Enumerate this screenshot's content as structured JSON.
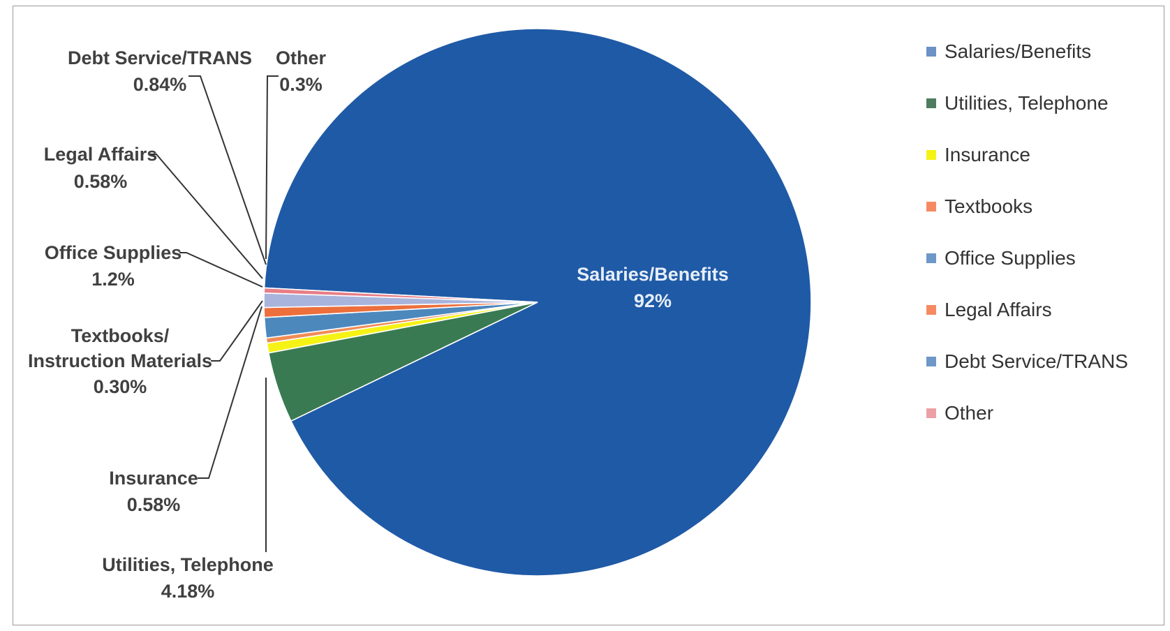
{
  "chart_data": {
    "type": "pie",
    "title": "",
    "slices": [
      {
        "label": "Salaries/Benefits",
        "value": 92,
        "display": "92%",
        "color": "#1f5aa6",
        "label_lines": [
          "Salaries/Benefits",
          "92%"
        ]
      },
      {
        "label": "Utilities, Telephone",
        "value": 4.18,
        "display": "4.18%",
        "color": "#3a7a52",
        "label_lines": [
          "Utilities, Telephone",
          "4.18%"
        ]
      },
      {
        "label": "Insurance",
        "value": 0.58,
        "display": "0.58%",
        "color": "#f5f215",
        "label_lines": [
          "Insurance",
          "0.58%"
        ]
      },
      {
        "label": "Textbooks",
        "value": 0.3,
        "display": "0.30%",
        "color": "#f08c55",
        "label_lines": [
          "Textbooks/",
          "Instruction Materials",
          "0.30%"
        ]
      },
      {
        "label": "Office Supplies",
        "value": 1.2,
        "display": "1.2%",
        "color": "#4d88bd",
        "label_lines": [
          "Office Supplies",
          "1.2%"
        ]
      },
      {
        "label": "Legal Affairs",
        "value": 0.58,
        "display": "0.58%",
        "color": "#ec6f3c",
        "label_lines": [
          "Legal Affairs",
          "0.58%"
        ]
      },
      {
        "label": "Debt Service/TRANS",
        "value": 0.84,
        "display": "0.84%",
        "color": "#a9b4dc",
        "label_lines": [
          "Debt Service/TRANS",
          "0.84%"
        ]
      },
      {
        "label": "Other",
        "value": 0.3,
        "display": "0.3%",
        "color": "#e87e87",
        "label_lines": [
          "Other",
          "0.3%"
        ]
      }
    ],
    "legend": {
      "position": "right",
      "items": [
        {
          "label": "Salaries/Benefits",
          "color": "#6a92c4"
        },
        {
          "label": "Utilities, Telephone",
          "color": "#4e7c5f"
        },
        {
          "label": "Insurance",
          "color": "#f5f215"
        },
        {
          "label": "Textbooks",
          "color": "#f58a62"
        },
        {
          "label": "Office Supplies",
          "color": "#6d98c7"
        },
        {
          "label": "Legal Affairs",
          "color": "#f58a62"
        },
        {
          "label": "Debt Service/TRANS",
          "color": "#6d98c7"
        },
        {
          "label": "Other",
          "color": "#eba0a5"
        }
      ]
    },
    "label_color_inside": "#e6eef8",
    "label_color_outside": "#404040"
  }
}
